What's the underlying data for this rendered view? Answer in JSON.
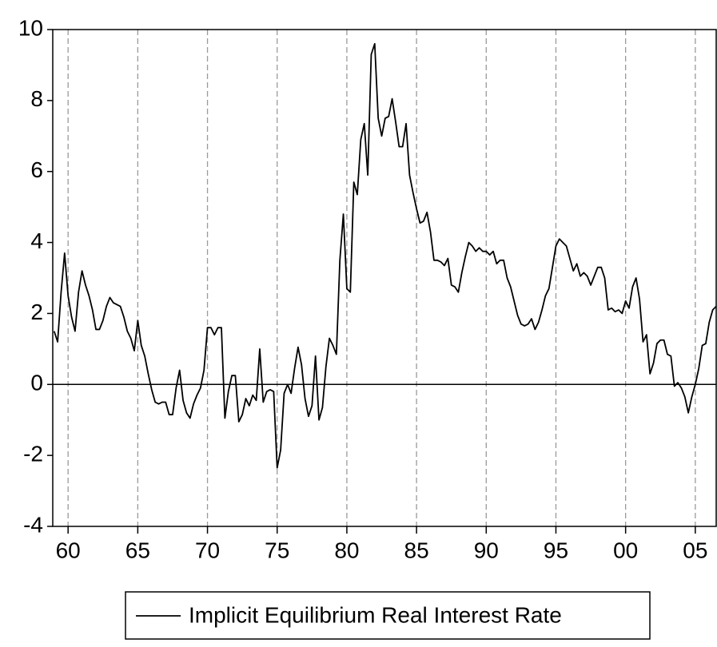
{
  "chart_data": {
    "type": "line",
    "x": [
      1959,
      1959.25,
      1959.5,
      1959.75,
      1960,
      1960.25,
      1960.5,
      1960.75,
      1961,
      1961.25,
      1961.5,
      1961.75,
      1962,
      1962.25,
      1962.5,
      1962.75,
      1963,
      1963.25,
      1963.5,
      1963.75,
      1964,
      1964.25,
      1964.5,
      1964.75,
      1965,
      1965.25,
      1965.5,
      1965.75,
      1966,
      1966.25,
      1966.5,
      1966.75,
      1967,
      1967.25,
      1967.5,
      1967.75,
      1968,
      1968.25,
      1968.5,
      1968.75,
      1969,
      1969.25,
      1969.5,
      1969.75,
      1970,
      1970.25,
      1970.5,
      1970.75,
      1971,
      1971.25,
      1971.5,
      1971.75,
      1972,
      1972.25,
      1972.5,
      1972.75,
      1973,
      1973.25,
      1973.5,
      1973.75,
      1974,
      1974.25,
      1974.5,
      1974.75,
      1975,
      1975.25,
      1975.5,
      1975.75,
      1976,
      1976.25,
      1976.5,
      1976.75,
      1977,
      1977.25,
      1977.5,
      1977.75,
      1978,
      1978.25,
      1978.5,
      1978.75,
      1979,
      1979.25,
      1979.5,
      1979.75,
      1980,
      1980.25,
      1980.5,
      1980.75,
      1981,
      1981.25,
      1981.5,
      1981.75,
      1982,
      1982.25,
      1982.5,
      1982.75,
      1983,
      1983.25,
      1983.5,
      1983.75,
      1984,
      1984.25,
      1984.5,
      1984.75,
      1985,
      1985.25,
      1985.5,
      1985.75,
      1986,
      1986.25,
      1986.5,
      1986.75,
      1987,
      1987.25,
      1987.5,
      1987.75,
      1988,
      1988.25,
      1988.5,
      1988.75,
      1989,
      1989.25,
      1989.5,
      1989.75,
      1990,
      1990.25,
      1990.5,
      1990.75,
      1991,
      1991.25,
      1991.5,
      1991.75,
      1992,
      1992.25,
      1992.5,
      1992.75,
      1993,
      1993.25,
      1993.5,
      1993.75,
      1994,
      1994.25,
      1994.5,
      1994.75,
      1995,
      1995.25,
      1995.5,
      1995.75,
      1996,
      1996.25,
      1996.5,
      1996.75,
      1997,
      1997.25,
      1997.5,
      1997.75,
      1998,
      1998.25,
      1998.5,
      1998.75,
      1999,
      1999.25,
      1999.5,
      1999.75,
      2000,
      2000.25,
      2000.5,
      2000.75,
      2001,
      2001.25,
      2001.5,
      2001.75,
      2002,
      2002.25,
      2002.5,
      2002.75,
      2003,
      2003.25,
      2003.5,
      2003.75,
      2004,
      2004.25,
      2004.5,
      2004.75,
      2005,
      2005.25,
      2005.5,
      2005.75,
      2006,
      2006.25,
      2006.5
    ],
    "series": [
      {
        "name": "Implicit Equilibrium Real Interest Rate",
        "color": "#000000",
        "values": [
          1.5,
          1.2,
          2.6,
          3.7,
          2.5,
          1.9,
          1.5,
          2.6,
          3.2,
          2.8,
          2.5,
          2.1,
          1.55,
          1.55,
          1.8,
          2.2,
          2.45,
          2.3,
          2.25,
          2.2,
          1.9,
          1.5,
          1.3,
          0.95,
          1.8,
          1.1,
          0.8,
          0.3,
          -0.15,
          -0.5,
          -0.55,
          -0.5,
          -0.5,
          -0.85,
          -0.85,
          -0.1,
          0.4,
          -0.45,
          -0.8,
          -0.95,
          -0.55,
          -0.3,
          -0.1,
          0.4,
          1.6,
          1.6,
          1.4,
          1.6,
          1.6,
          -0.95,
          -0.2,
          0.25,
          0.25,
          -1.05,
          -0.85,
          -0.4,
          -0.6,
          -0.3,
          -0.45,
          1.0,
          -0.5,
          -0.2,
          -0.15,
          -0.2,
          -2.35,
          -1.85,
          -0.25,
          0.0,
          -0.25,
          0.45,
          1.05,
          0.55,
          -0.4,
          -0.9,
          -0.6,
          0.8,
          -1.0,
          -0.65,
          0.5,
          1.3,
          1.1,
          0.85,
          3.5,
          4.8,
          2.7,
          2.6,
          5.7,
          5.35,
          6.9,
          7.35,
          5.9,
          9.3,
          9.6,
          7.5,
          7.0,
          7.5,
          7.55,
          8.05,
          7.4,
          6.7,
          6.7,
          7.35,
          5.9,
          5.4,
          4.95,
          4.55,
          4.6,
          4.85,
          4.3,
          3.5,
          3.5,
          3.45,
          3.35,
          3.55,
          2.8,
          2.75,
          2.6,
          3.15,
          3.6,
          4.0,
          3.9,
          3.75,
          3.85,
          3.75,
          3.75,
          3.65,
          3.75,
          3.4,
          3.5,
          3.5,
          3.0,
          2.75,
          2.35,
          1.95,
          1.7,
          1.65,
          1.7,
          1.85,
          1.55,
          1.75,
          2.1,
          2.5,
          2.7,
          3.3,
          3.9,
          4.1,
          4.0,
          3.9,
          3.55,
          3.2,
          3.4,
          3.05,
          3.15,
          3.05,
          2.8,
          3.05,
          3.3,
          3.3,
          3.0,
          2.1,
          2.15,
          2.05,
          2.1,
          2.0,
          2.35,
          2.15,
          2.75,
          3.0,
          2.4,
          1.2,
          1.4,
          0.3,
          0.6,
          1.15,
          1.25,
          1.25,
          0.85,
          0.8,
          -0.05,
          0.05,
          -0.1,
          -0.35,
          -0.8,
          -0.35,
          0.0,
          0.45,
          1.1,
          1.15,
          1.75,
          2.1,
          2.2
        ]
      }
    ],
    "xlim": [
      1958.9,
      2006.5
    ],
    "xticks": [
      {
        "value": 1960,
        "label": "60"
      },
      {
        "value": 1965,
        "label": "65"
      },
      {
        "value": 1970,
        "label": "70"
      },
      {
        "value": 1975,
        "label": "75"
      },
      {
        "value": 1980,
        "label": "80"
      },
      {
        "value": 1985,
        "label": "85"
      },
      {
        "value": 1990,
        "label": "90"
      },
      {
        "value": 1995,
        "label": "95"
      },
      {
        "value": 2000,
        "label": "00"
      },
      {
        "value": 2005,
        "label": "05"
      }
    ],
    "ylim": [
      -4,
      10
    ],
    "yticks": [
      -4,
      -2,
      0,
      2,
      4,
      6,
      8,
      10
    ],
    "grid": "x-dashed",
    "legend": "bottom"
  }
}
